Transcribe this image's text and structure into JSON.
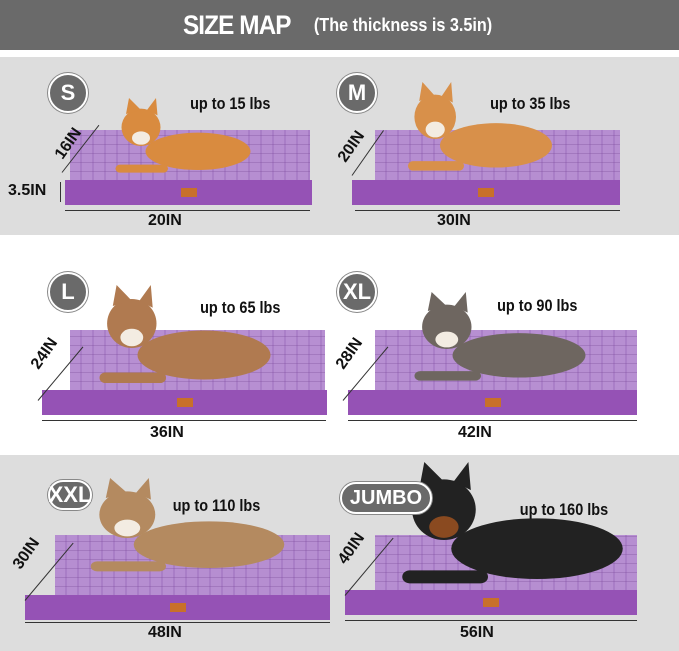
{
  "header": {
    "title": "SIZE MAP",
    "subtitle": "(The thickness is 3.5in)"
  },
  "thickness_label": "3.5IN",
  "colors": {
    "header": "#6a6a6a",
    "band": "#dddddd",
    "bed_top": "#b48ad0",
    "bed_side": "#9552b5",
    "tag": "#c8702a"
  },
  "sizes": [
    {
      "size": "S",
      "weight": "up to 15 lbs",
      "depth": "16IN",
      "width": "20IN",
      "dog": "corgi"
    },
    {
      "size": "M",
      "weight": "up to 35 lbs",
      "depth": "20IN",
      "width": "30IN",
      "dog": "shiba-inu"
    },
    {
      "size": "L",
      "weight": "up to 65 lbs",
      "depth": "24IN",
      "width": "36IN",
      "dog": "australian-shepherd"
    },
    {
      "size": "XL",
      "weight": "up to 90 lbs",
      "depth": "28IN",
      "width": "42IN",
      "dog": "weimaraner"
    },
    {
      "size": "XXL",
      "weight": "up to 110 lbs",
      "depth": "30IN",
      "width": "48IN",
      "dog": "alaskan-malamute"
    },
    {
      "size": "JUMBO",
      "weight": "up to 160 lbs",
      "depth": "40IN",
      "width": "56IN",
      "dog": "doberman"
    }
  ]
}
